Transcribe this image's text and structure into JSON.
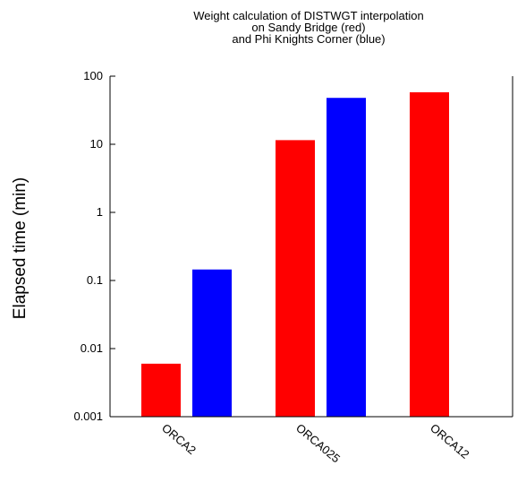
{
  "chart_data": {
    "type": "bar",
    "title_lines": [
      "Weight calculation of DISTWGT interpolation",
      "on Sandy Bridge (red)",
      "and Phi Knights Corner (blue)"
    ],
    "xlabel": "",
    "ylabel": "Elapsed time (min)",
    "yscale": "log",
    "ylim": [
      0.001,
      100
    ],
    "yticks": [
      "0.001",
      "0.01",
      "0.1",
      "1",
      "10",
      "100"
    ],
    "categories": [
      "ORCA2",
      "ORCA025",
      "ORCA12"
    ],
    "series": [
      {
        "color": "#ff0000",
        "values": [
          0.006,
          11.5,
          58
        ]
      },
      {
        "color": "#0000ff",
        "values": [
          0.145,
          48,
          0.001
        ]
      }
    ],
    "grid": false,
    "legend": "none"
  }
}
